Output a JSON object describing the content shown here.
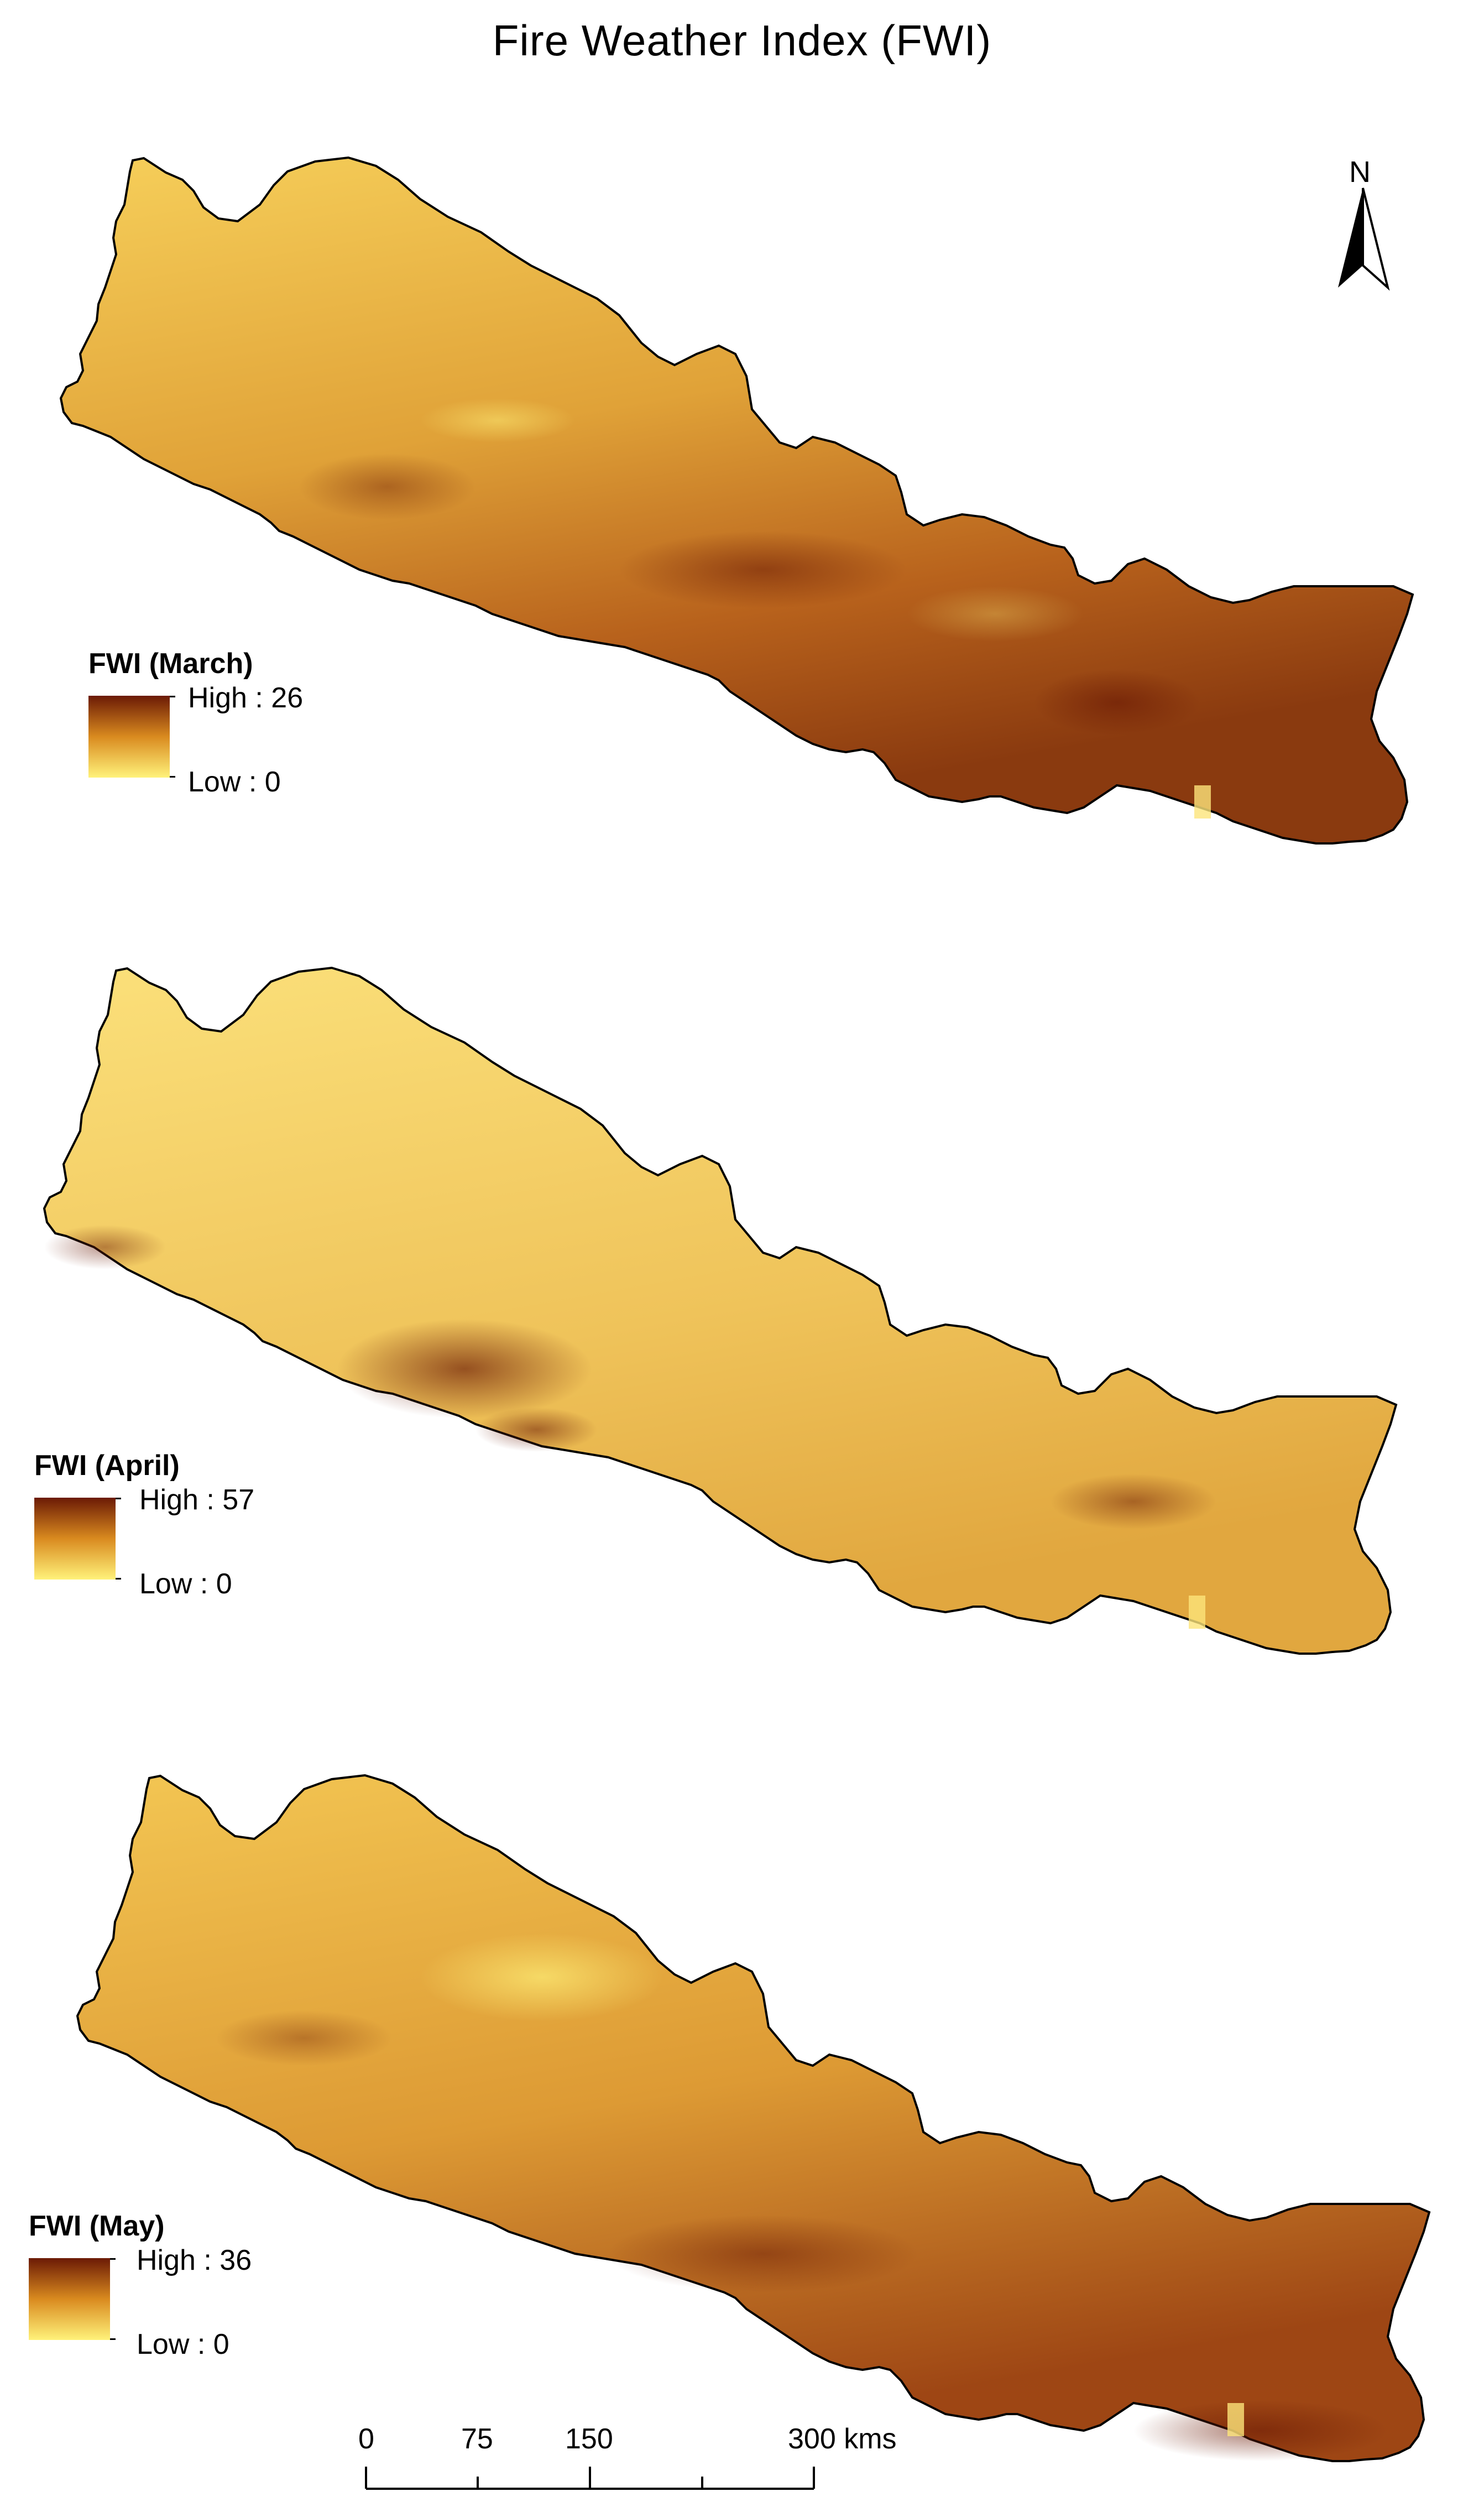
{
  "title": "Fire Weather Index (FWI)",
  "north_arrow": {
    "label": "N",
    "icon": "north-arrow-icon"
  },
  "color_ramp": {
    "high": "#6b1a05",
    "mid": "#d98a1f",
    "low": "#fff27a"
  },
  "panels": [
    {
      "id": "march",
      "legend_title": "FWI (March)",
      "high_label": "High : 26",
      "low_label": "Low : 0",
      "high_value": 26,
      "low_value": 0
    },
    {
      "id": "april",
      "legend_title": "FWI (April)",
      "high_label": "High : 57",
      "low_label": "Low : 0",
      "high_value": 57,
      "low_value": 0
    },
    {
      "id": "may",
      "legend_title": "FWI (May)",
      "high_label": "High : 36",
      "low_label": "Low : 0",
      "high_value": 36,
      "low_value": 0
    }
  ],
  "scale_bar": {
    "labels": [
      "0",
      "75",
      "150",
      "300 kms"
    ],
    "values": [
      0,
      75,
      150,
      300
    ],
    "unit": "kms"
  }
}
